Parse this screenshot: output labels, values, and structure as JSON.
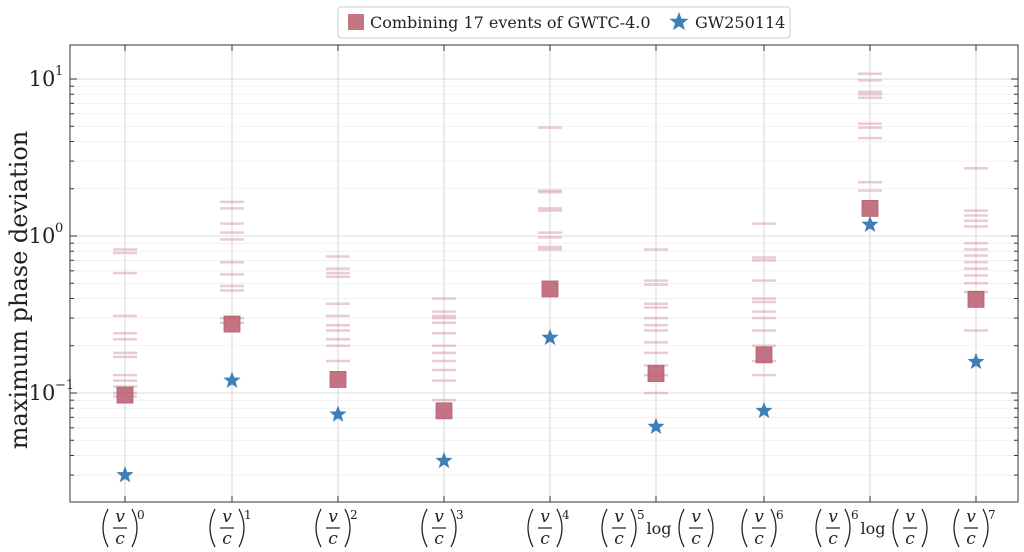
{
  "chart_data": {
    "type": "scatter",
    "title": "",
    "xlabel": "",
    "ylabel": "maximum phase deviation",
    "yscale": "log",
    "ylim": [
      0.02,
      15
    ],
    "y_tick_labels": [
      {
        "value": 0.1,
        "base": "10",
        "exp": "−1"
      },
      {
        "value": 1,
        "base": "10",
        "exp": "0"
      },
      {
        "value": 10,
        "base": "10",
        "exp": "1"
      }
    ],
    "grid": true,
    "legend": "top-center",
    "categories": [
      {
        "prefix": "",
        "exp": "0"
      },
      {
        "prefix": "",
        "exp": "1"
      },
      {
        "prefix": "",
        "exp": "2"
      },
      {
        "prefix": "",
        "exp": "3"
      },
      {
        "prefix": "",
        "exp": "4"
      },
      {
        "prefix": "",
        "exp": "5",
        "suffix_log": true
      },
      {
        "prefix": "",
        "exp": "6"
      },
      {
        "prefix": "",
        "exp": "6",
        "suffix_log": true
      },
      {
        "prefix": "",
        "exp": "7"
      }
    ],
    "fraction_numerator": "v",
    "fraction_denominator": "c",
    "log_label": "log",
    "series": [
      {
        "name": "Combining 17 events of GWTC-4.0",
        "marker": "square",
        "color": "#c0687a",
        "values": [
          0.097,
          0.275,
          0.122,
          0.077,
          0.46,
          0.133,
          0.175,
          1.5,
          0.395
        ]
      },
      {
        "name": "GW250114",
        "marker": "star",
        "color": "#3f7fb8",
        "values": [
          0.03,
          0.12,
          0.073,
          0.037,
          0.225,
          0.061,
          0.077,
          1.18,
          0.158
        ]
      }
    ],
    "individual_events": [
      [
        0.82,
        0.78,
        0.58,
        0.31,
        0.24,
        0.22,
        0.18,
        0.17,
        0.13,
        0.12,
        0.11,
        0.1,
        0.095
      ],
      [
        1.65,
        1.5,
        1.2,
        1.05,
        0.95,
        0.68,
        0.57,
        0.48,
        0.45,
        0.3,
        0.28
      ],
      [
        0.74,
        0.62,
        0.58,
        0.55,
        0.37,
        0.31,
        0.27,
        0.25,
        0.22,
        0.2,
        0.16
      ],
      [
        0.4,
        0.33,
        0.31,
        0.3,
        0.28,
        0.24,
        0.2,
        0.18,
        0.16,
        0.14,
        0.12,
        0.09
      ],
      [
        4.9,
        1.95,
        1.9,
        1.5,
        1.45,
        1.05,
        0.98,
        0.85,
        0.82
      ],
      [
        0.82,
        0.52,
        0.49,
        0.37,
        0.35,
        0.3,
        0.27,
        0.25,
        0.21,
        0.18,
        0.15,
        0.13,
        0.1
      ],
      [
        1.2,
        0.73,
        0.7,
        0.52,
        0.4,
        0.38,
        0.33,
        0.3,
        0.25,
        0.2,
        0.16,
        0.13
      ],
      [
        10.8,
        9.8,
        8.3,
        8,
        7.6,
        5.2,
        4.9,
        4.2,
        2.2,
        1.95
      ],
      [
        2.7,
        1.45,
        1.35,
        1.25,
        1.15,
        0.9,
        0.82,
        0.75,
        0.68,
        0.62,
        0.56,
        0.5,
        0.44,
        0.25
      ]
    ],
    "colors": {
      "combined": "#c0687a",
      "gw250114": "#3f7fb8",
      "individual": "#d8a3b0",
      "grid": "#d9d9d9"
    }
  }
}
